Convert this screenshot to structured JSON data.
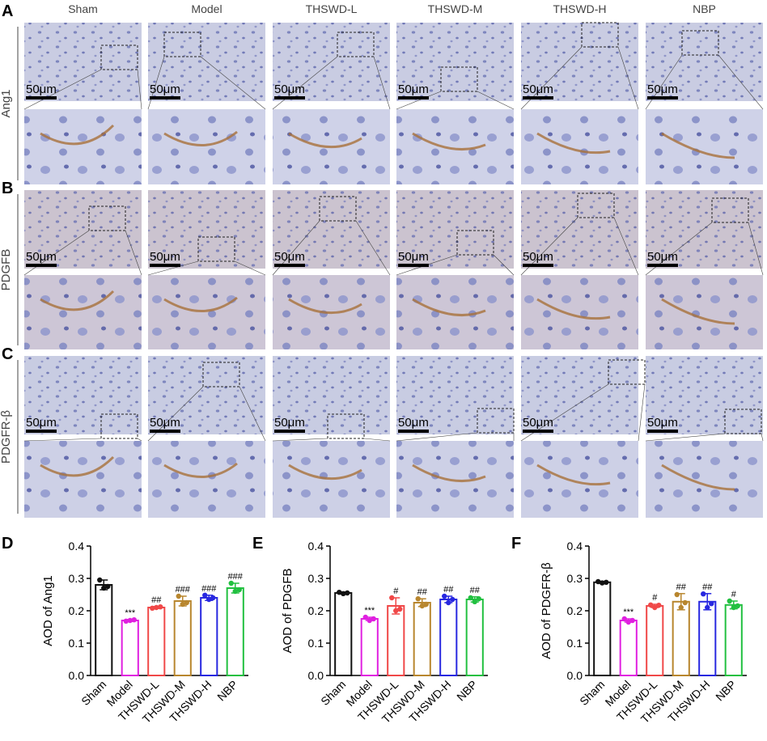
{
  "micrographs": {
    "panels": [
      "A",
      "B",
      "C"
    ],
    "columns": [
      "Sham",
      "Model",
      "THSWD-L",
      "THSWD-M",
      "THSWD-H",
      "NBP"
    ],
    "rows": [
      "Ang1",
      "PDGFB",
      "PDGFR-β"
    ],
    "scale_bar": "50μm"
  },
  "chart_data": [
    {
      "type": "bar",
      "panel": "D",
      "ylabel": "AOD of Ang1",
      "categories": [
        "Sham",
        "Model",
        "THSWD-L",
        "THSWD-M",
        "THSWD-H",
        "NBP"
      ],
      "colors": [
        "#111111",
        "#e020e0",
        "#f04848",
        "#b8862e",
        "#2828e0",
        "#22c040"
      ],
      "values": [
        0.28,
        0.17,
        0.21,
        0.23,
        0.24,
        0.27
      ],
      "errors": [
        0.015,
        0.003,
        0.003,
        0.015,
        0.008,
        0.015
      ],
      "points": [
        [
          0.295,
          0.27,
          0.275
        ],
        [
          0.168,
          0.17,
          0.172
        ],
        [
          0.208,
          0.21,
          0.212
        ],
        [
          0.245,
          0.22,
          0.225
        ],
        [
          0.248,
          0.235,
          0.24
        ],
        [
          0.285,
          0.26,
          0.265
        ]
      ],
      "significance": [
        null,
        "***",
        "##",
        "###",
        "###",
        "###"
      ],
      "ylim": [
        0,
        0.4
      ],
      "yticks": [
        {
          "value": 0,
          "label": "0.0"
        },
        0.1,
        0.2,
        0.3,
        0.4
      ]
    },
    {
      "type": "bar",
      "panel": "E",
      "ylabel": "AOD of PDGFB",
      "categories": [
        "Sham",
        "Model",
        "THSWD-L",
        "THSWD-M",
        "THSWD-H",
        "NBP"
      ],
      "colors": [
        "#111111",
        "#e020e0",
        "#f04848",
        "#b8862e",
        "#2828e0",
        "#22c040"
      ],
      "values": [
        0.255,
        0.175,
        0.215,
        0.225,
        0.235,
        0.235
      ],
      "errors": [
        0.003,
        0.005,
        0.025,
        0.012,
        0.01,
        0.008
      ],
      "points": [
        [
          0.257,
          0.253,
          0.255
        ],
        [
          0.18,
          0.17,
          0.175
        ],
        [
          0.24,
          0.2,
          0.205
        ],
        [
          0.237,
          0.215,
          0.22
        ],
        [
          0.245,
          0.225,
          0.235
        ],
        [
          0.24,
          0.228,
          0.237
        ]
      ],
      "significance": [
        null,
        "***",
        "#",
        "##",
        "##",
        "##"
      ],
      "ylim": [
        0,
        0.4
      ],
      "yticks": [
        {
          "value": 0,
          "label": "0.0"
        },
        0.1,
        0.2,
        0.3,
        0.4
      ]
    },
    {
      "type": "bar",
      "panel": "F",
      "ylabel": "AOD of PDGFR-β",
      "categories": [
        "Sham",
        "Model",
        "THSWD-L",
        "THSWD-M",
        "THSWD-H",
        "NBP"
      ],
      "colors": [
        "#111111",
        "#e020e0",
        "#f04848",
        "#b8862e",
        "#2828e0",
        "#22c040"
      ],
      "values": [
        0.288,
        0.17,
        0.215,
        0.228,
        0.228,
        0.218
      ],
      "errors": [
        0.003,
        0.005,
        0.005,
        0.025,
        0.025,
        0.012
      ],
      "points": [
        [
          0.29,
          0.286,
          0.288
        ],
        [
          0.175,
          0.165,
          0.17
        ],
        [
          0.218,
          0.21,
          0.217
        ],
        [
          0.25,
          0.21,
          0.225
        ],
        [
          0.252,
          0.21,
          0.222
        ],
        [
          0.23,
          0.21,
          0.215
        ]
      ],
      "significance": [
        null,
        "***",
        "#",
        "##",
        "##",
        "#"
      ],
      "ylim": [
        0,
        0.4
      ],
      "yticks": [
        {
          "value": 0,
          "label": "0.0"
        },
        0.1,
        0.2,
        0.3,
        0.4
      ]
    }
  ]
}
